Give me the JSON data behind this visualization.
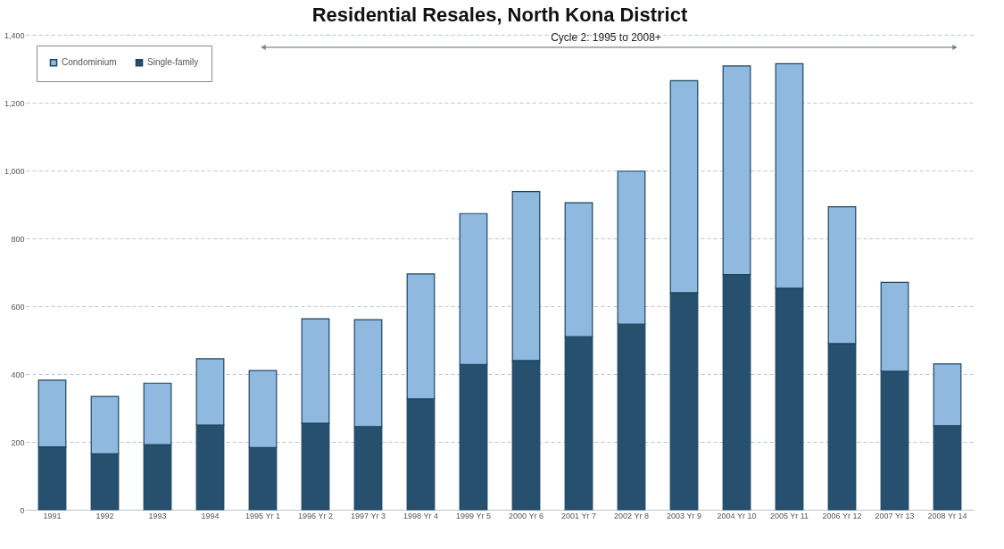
{
  "chart_data": {
    "type": "bar",
    "title": "Residential Resales, North Kona District",
    "categories": [
      "1991",
      "1992",
      "1993",
      "1994",
      "1995 Yr 1",
      "1996 Yr 2",
      "1997 Yr 3",
      "1998 Yr 4",
      "1999 Yr 5",
      "2000 Yr 6",
      "2001 Yr 7",
      "2002 Yr 8",
      "2003 Yr 9",
      "2004 Yr 10",
      "2005 Yr 11",
      "2006 Yr 12",
      "2007 Yr 13",
      "2008 Yr 14"
    ],
    "stacked": true,
    "series": [
      {
        "name": "Single-family",
        "color": "#26506e",
        "values": [
          185,
          165,
          192,
          250,
          183,
          255,
          245,
          327,
          428,
          440,
          510,
          547,
          640,
          693,
          653,
          490,
          408,
          248
        ]
      },
      {
        "name": "Condominium",
        "color": "#8fb9df",
        "values": [
          197,
          169,
          181,
          195,
          227,
          308,
          315,
          368,
          445,
          498,
          395,
          451,
          625,
          615,
          662,
          403,
          262,
          182
        ]
      }
    ],
    "ylim": [
      0,
      1400
    ],
    "yticks": [
      0,
      200,
      400,
      600,
      800,
      {
        "value": 1000,
        "label": "1,000"
      },
      {
        "value": 1200,
        "label": "1,200"
      },
      {
        "value": 1400,
        "label": "1,400"
      }
    ],
    "grid": "y",
    "legend": "top left",
    "annotations": [
      "Cycle 2: 1995 to 2008+"
    ]
  }
}
